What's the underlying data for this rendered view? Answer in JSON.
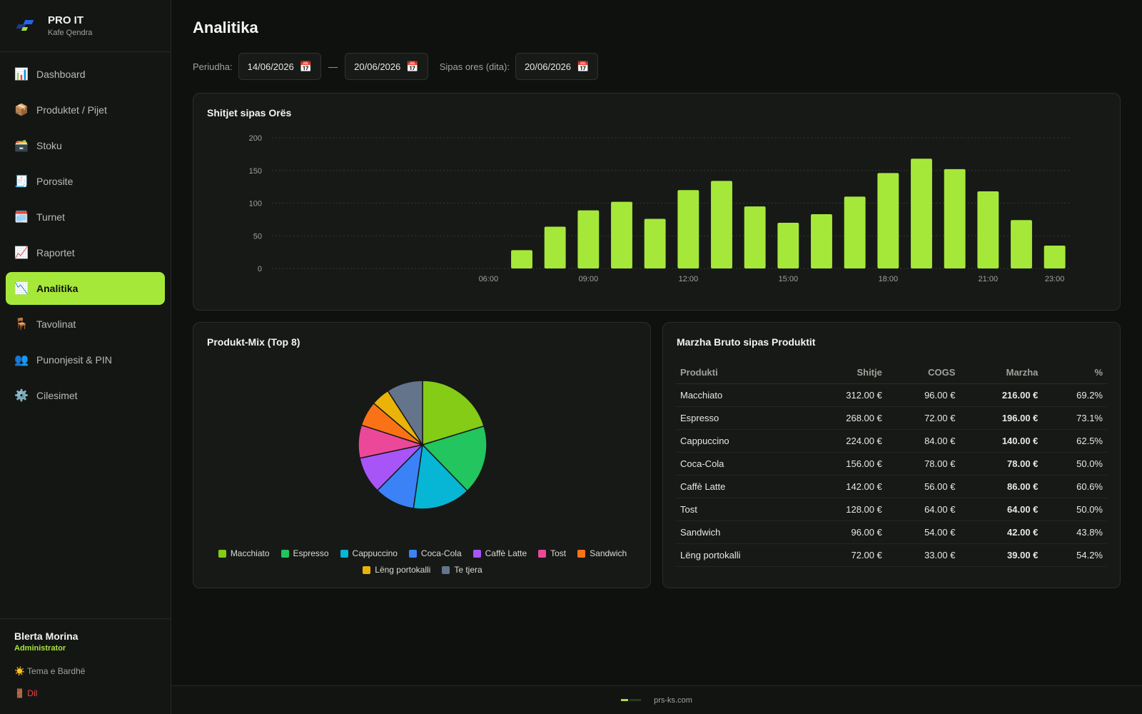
{
  "brand": {
    "name": "PRO IT",
    "subtitle": "Kafe Qendra"
  },
  "nav": [
    {
      "label": "Dashboard",
      "icon": "📊",
      "name": "dashboard"
    },
    {
      "label": "Produktet / Pijet",
      "icon": "📦",
      "name": "products"
    },
    {
      "label": "Stoku",
      "icon": "🗃️",
      "name": "stock"
    },
    {
      "label": "Porosite",
      "icon": "🧾",
      "name": "orders"
    },
    {
      "label": "Turnet",
      "icon": "🗓️",
      "name": "shifts"
    },
    {
      "label": "Raportet",
      "icon": "📈",
      "name": "reports"
    },
    {
      "label": "Analitika",
      "icon": "📉",
      "name": "analytics",
      "active": true
    },
    {
      "label": "Tavolinat",
      "icon": "🪑",
      "name": "tables"
    },
    {
      "label": "Punonjesit & PIN",
      "icon": "👥",
      "name": "employees"
    },
    {
      "label": "Cilesimet",
      "icon": "⚙️",
      "name": "settings"
    }
  ],
  "user": {
    "name": "Blerta Morina",
    "role": "Administrator",
    "theme_label": "☀️ Tema e Bardhë",
    "logout_label": "🚪 Dil"
  },
  "page": {
    "title": "Analitika"
  },
  "filters": {
    "period_label": "Periudha:",
    "date_from": "14/06/2026",
    "separator": "—",
    "date_to": "20/06/2026",
    "hourly_label": "Sipas ores (dita):",
    "hourly_date": "20/06/2026",
    "calendar_icon": "📅"
  },
  "hourly_card": {
    "title": "Shitjet sipas Orës"
  },
  "mix_card": {
    "title": "Produkt-Mix (Top 8)"
  },
  "margin_card": {
    "title": "Marzha Bruto sipas Produktit",
    "columns": [
      "Produkti",
      "Shitje",
      "COGS",
      "Marzha",
      "%"
    ],
    "rows": [
      [
        "Macchiato",
        "312.00 €",
        "96.00 €",
        "216.00 €",
        "69.2%"
      ],
      [
        "Espresso",
        "268.00 €",
        "72.00 €",
        "196.00 €",
        "73.1%"
      ],
      [
        "Cappuccino",
        "224.00 €",
        "84.00 €",
        "140.00 €",
        "62.5%"
      ],
      [
        "Coca-Cola",
        "156.00 €",
        "78.00 €",
        "78.00 €",
        "50.0%"
      ],
      [
        "Caffè Latte",
        "142.00 €",
        "56.00 €",
        "86.00 €",
        "60.6%"
      ],
      [
        "Tost",
        "128.00 €",
        "64.00 €",
        "64.00 €",
        "50.0%"
      ],
      [
        "Sandwich",
        "96.00 €",
        "54.00 €",
        "42.00 €",
        "43.8%"
      ],
      [
        "Lëng portokalli",
        "72.00 €",
        "33.00 €",
        "39.00 €",
        "54.2%"
      ]
    ]
  },
  "footer": {
    "text": "prs-ks.com"
  },
  "chart_data": [
    {
      "type": "bar",
      "title": "Shitjet sipas Orës",
      "x": [
        0,
        1,
        2,
        3,
        4,
        5,
        6,
        7,
        8,
        9,
        10,
        11,
        12,
        13,
        14,
        15,
        16,
        17,
        18,
        19,
        20,
        21,
        22,
        23
      ],
      "tick_labels": {
        "6": "06:00",
        "9": "09:00",
        "12": "12:00",
        "15": "15:00",
        "18": "18:00",
        "21": "21:00",
        "23": "23:00"
      },
      "values": [
        0,
        0,
        0,
        0,
        0,
        0,
        0,
        28,
        64,
        89,
        102,
        76,
        120,
        134,
        95,
        70,
        83,
        110,
        146,
        168,
        152,
        118,
        74,
        35
      ],
      "yticks": [
        0,
        50,
        100,
        150,
        200
      ],
      "ylim": [
        0,
        200
      ],
      "grid": true,
      "color": "#a6e83a"
    },
    {
      "type": "pie",
      "title": "Produkt-Mix (Top 8)",
      "labels": [
        "Macchiato",
        "Espresso",
        "Cappuccino",
        "Coca-Cola",
        "Caffè Latte",
        "Tost",
        "Sandwich",
        "Lëng portokalli",
        "Te tjera"
      ],
      "values": [
        312,
        268,
        224,
        156,
        142,
        128,
        96,
        72,
        140
      ],
      "colors": [
        "#84cc16",
        "#22c55e",
        "#06b6d4",
        "#3b82f6",
        "#a855f7",
        "#ec4899",
        "#f97316",
        "#eab308",
        "#64748b"
      ]
    }
  ]
}
